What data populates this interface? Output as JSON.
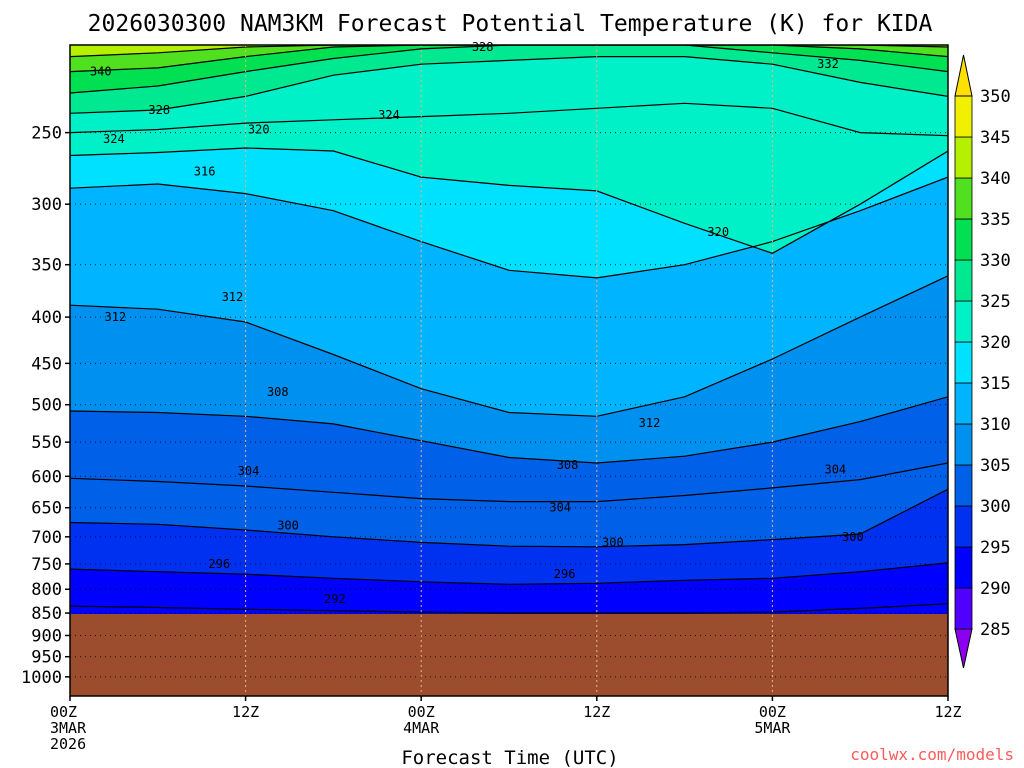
{
  "chart_data": {
    "type": "heatmap",
    "title": "2026030300 NAM3KM Forecast Potential Temperature (K) for KIDA",
    "xlabel": "Forecast Time (UTC)",
    "ylabel": "",
    "y_axis": {
      "units": "hPa",
      "scale": "log",
      "ylim": [
        1050,
        200
      ],
      "ticks": [
        "250",
        "300",
        "350",
        "400",
        "450",
        "500",
        "550",
        "600",
        "650",
        "700",
        "750",
        "800",
        "850",
        "900",
        "950",
        "1000"
      ]
    },
    "x_axis": {
      "xlim_hours": [
        0,
        60
      ],
      "ticks": [
        {
          "hour": 0,
          "line1": "00Z",
          "line2": "3MAR",
          "line3": "2026"
        },
        {
          "hour": 12,
          "line1": "12Z",
          "line2": "",
          "line3": ""
        },
        {
          "hour": 24,
          "line1": "00Z",
          "line2": "4MAR",
          "line3": ""
        },
        {
          "hour": 36,
          "line1": "12Z",
          "line2": "",
          "line3": ""
        },
        {
          "hour": 48,
          "line1": "00Z",
          "line2": "5MAR",
          "line3": ""
        },
        {
          "hour": 60,
          "line1": "12Z",
          "line2": "",
          "line3": ""
        }
      ]
    },
    "colorbar": {
      "levels": [
        285,
        290,
        295,
        300,
        305,
        310,
        315,
        320,
        325,
        330,
        335,
        340,
        345,
        350
      ],
      "labels": [
        "350",
        "345",
        "340",
        "335",
        "330",
        "325",
        "320",
        "315",
        "310",
        "305",
        "300",
        "295",
        "290",
        "285"
      ],
      "colors": [
        "#8c00f0",
        "#5000ff",
        "#0000ff",
        "#0030f0",
        "#0060e8",
        "#0090f0",
        "#00b4ff",
        "#00e0ff",
        "#00f0c8",
        "#00e890",
        "#00e050",
        "#50e020",
        "#b4f000",
        "#f0f000",
        "#ffe000"
      ]
    },
    "surface": {
      "pressure_hpa": 852,
      "color": "#9c4d2d"
    },
    "isentropes": [
      {
        "theta": 292,
        "points": [
          [
            0,
            835
          ],
          [
            6,
            838
          ],
          [
            12,
            842
          ],
          [
            18,
            845
          ],
          [
            24,
            848
          ],
          [
            30,
            850
          ],
          [
            36,
            850
          ],
          [
            42,
            850
          ],
          [
            48,
            848
          ],
          [
            54,
            840
          ],
          [
            60,
            830
          ]
        ]
      },
      {
        "theta": 296,
        "points": [
          [
            0,
            760
          ],
          [
            6,
            765
          ],
          [
            12,
            770
          ],
          [
            18,
            778
          ],
          [
            24,
            785
          ],
          [
            30,
            790
          ],
          [
            36,
            788
          ],
          [
            42,
            782
          ],
          [
            48,
            778
          ],
          [
            54,
            765
          ],
          [
            60,
            748
          ]
        ]
      },
      {
        "theta": 300,
        "points": [
          [
            0,
            675
          ],
          [
            6,
            678
          ],
          [
            12,
            688
          ],
          [
            18,
            700
          ],
          [
            24,
            710
          ],
          [
            30,
            717
          ],
          [
            36,
            718
          ],
          [
            42,
            714
          ],
          [
            48,
            705
          ],
          [
            54,
            695
          ],
          [
            60,
            620
          ]
        ]
      },
      {
        "theta": 304,
        "points": [
          [
            0,
            603
          ],
          [
            6,
            608
          ],
          [
            12,
            615
          ],
          [
            18,
            625
          ],
          [
            24,
            635
          ],
          [
            30,
            640
          ],
          [
            36,
            640
          ],
          [
            42,
            630
          ],
          [
            48,
            618
          ],
          [
            54,
            605
          ],
          [
            60,
            580
          ]
        ]
      },
      {
        "theta": 308,
        "points": [
          [
            0,
            508
          ],
          [
            6,
            510
          ],
          [
            12,
            515
          ],
          [
            18,
            525
          ],
          [
            24,
            548
          ],
          [
            30,
            572
          ],
          [
            36,
            580
          ],
          [
            42,
            570
          ],
          [
            48,
            550
          ],
          [
            54,
            522
          ],
          [
            60,
            490
          ]
        ]
      },
      {
        "theta": 312,
        "points": [
          [
            0,
            388
          ],
          [
            6,
            392
          ],
          [
            12,
            405
          ],
          [
            18,
            440
          ],
          [
            24,
            480
          ],
          [
            30,
            510
          ],
          [
            36,
            515
          ],
          [
            42,
            490
          ],
          [
            48,
            445
          ],
          [
            54,
            400
          ],
          [
            60,
            360
          ]
        ]
      },
      {
        "theta": 316,
        "points": [
          [
            0,
            288
          ],
          [
            6,
            285
          ],
          [
            12,
            292
          ],
          [
            18,
            305
          ],
          [
            24,
            330
          ],
          [
            30,
            355
          ],
          [
            36,
            362
          ],
          [
            42,
            350
          ],
          [
            48,
            330
          ],
          [
            54,
            305
          ],
          [
            60,
            280
          ]
        ]
      },
      {
        "theta": 320,
        "points": [
          [
            0,
            265
          ],
          [
            6,
            263
          ],
          [
            12,
            260
          ],
          [
            18,
            262
          ],
          [
            24,
            280
          ],
          [
            30,
            286
          ],
          [
            36,
            290
          ],
          [
            42,
            315
          ],
          [
            48,
            340
          ],
          [
            54,
            300
          ],
          [
            60,
            262
          ]
        ]
      },
      {
        "theta": 324,
        "points": [
          [
            0,
            250
          ],
          [
            6,
            248
          ],
          [
            12,
            244
          ],
          [
            18,
            242
          ],
          [
            24,
            240
          ],
          [
            30,
            238
          ],
          [
            36,
            235
          ],
          [
            42,
            232
          ],
          [
            48,
            235
          ],
          [
            54,
            250
          ],
          [
            60,
            252
          ]
        ]
      },
      {
        "theta": 328,
        "points": [
          [
            0,
            238
          ],
          [
            6,
            236
          ],
          [
            12,
            228
          ],
          [
            18,
            216
          ],
          [
            24,
            210
          ],
          [
            30,
            208
          ],
          [
            36,
            206
          ],
          [
            42,
            206
          ],
          [
            48,
            210
          ],
          [
            54,
            220
          ],
          [
            60,
            228
          ]
        ]
      },
      {
        "theta": 332,
        "points": [
          [
            0,
            226
          ],
          [
            6,
            222
          ],
          [
            12,
            214
          ],
          [
            18,
            207
          ],
          [
            24,
            202
          ],
          [
            30,
            200
          ],
          [
            36,
            200
          ],
          [
            42,
            200
          ],
          [
            48,
            204
          ],
          [
            54,
            208
          ],
          [
            60,
            214
          ]
        ]
      },
      {
        "theta": 336,
        "points": [
          [
            0,
            214
          ],
          [
            6,
            212
          ],
          [
            12,
            206
          ],
          [
            18,
            201
          ],
          [
            24,
            200
          ],
          [
            30,
            200
          ],
          [
            36,
            200
          ],
          [
            42,
            200
          ],
          [
            48,
            200
          ],
          [
            54,
            202
          ],
          [
            60,
            206
          ]
        ]
      },
      {
        "theta": 340,
        "points": [
          [
            0,
            206
          ],
          [
            6,
            204
          ],
          [
            12,
            201
          ],
          [
            18,
            200
          ],
          [
            24,
            200
          ],
          [
            30,
            200
          ],
          [
            36,
            200
          ],
          [
            42,
            200
          ],
          [
            48,
            200
          ],
          [
            54,
            200
          ],
          [
            60,
            201
          ]
        ]
      }
    ],
    "contour_labels": [
      {
        "text": "340",
        "hour": 2.1,
        "p": 214
      },
      {
        "text": "328",
        "hour": 28.2,
        "p": 201
      },
      {
        "text": "332",
        "hour": 51.8,
        "p": 210
      },
      {
        "text": "328",
        "hour": 6.1,
        "p": 236
      },
      {
        "text": "324",
        "hour": 3.0,
        "p": 254
      },
      {
        "text": "320",
        "hour": 12.9,
        "p": 248
      },
      {
        "text": "324",
        "hour": 21.8,
        "p": 239
      },
      {
        "text": "316",
        "hour": 9.2,
        "p": 276
      },
      {
        "text": "320",
        "hour": 44.3,
        "p": 322
      },
      {
        "text": "312",
        "hour": 11.1,
        "p": 380
      },
      {
        "text": "312",
        "hour": 3.1,
        "p": 400
      },
      {
        "text": "308",
        "hour": 14.2,
        "p": 484
      },
      {
        "text": "312",
        "hour": 39.6,
        "p": 524
      },
      {
        "text": "304",
        "hour": 12.2,
        "p": 592
      },
      {
        "text": "308",
        "hour": 34.0,
        "p": 583
      },
      {
        "text": "304",
        "hour": 52.3,
        "p": 590
      },
      {
        "text": "300",
        "hour": 14.9,
        "p": 680
      },
      {
        "text": "304",
        "hour": 33.5,
        "p": 650
      },
      {
        "text": "300",
        "hour": 37.1,
        "p": 710
      },
      {
        "text": "300",
        "hour": 53.5,
        "p": 700
      },
      {
        "text": "296",
        "hour": 10.2,
        "p": 750
      },
      {
        "text": "296",
        "hour": 33.8,
        "p": 770
      },
      {
        "text": "292",
        "hour": 18.1,
        "p": 820
      }
    ]
  },
  "credit": "coolwx.com/models"
}
